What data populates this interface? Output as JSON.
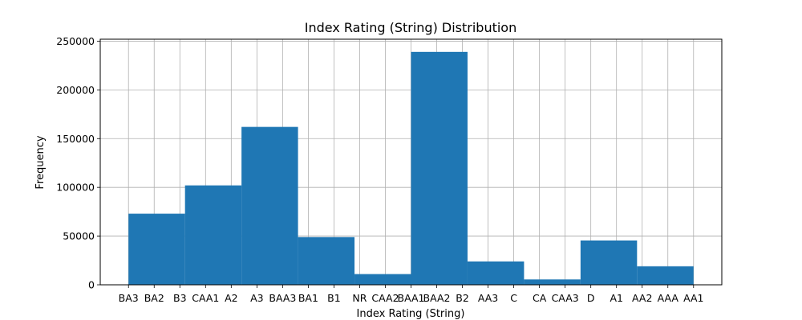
{
  "chart_data": {
    "type": "bar",
    "title": "Index Rating (String) Distribution",
    "xlabel": "Index Rating (String)",
    "ylabel": "Frequency",
    "categories": [
      "BA3",
      "BA2",
      "B3",
      "CAA1",
      "A2",
      "A3",
      "BAA3",
      "BA1",
      "B1",
      "NR",
      "CAA2",
      "BAA1",
      "BAA2",
      "B2",
      "AA3",
      "C",
      "CA",
      "CAA3",
      "D",
      "A1",
      "AA2",
      "AAA",
      "AA1"
    ],
    "bins": [
      {
        "start": 0,
        "end": 2.2,
        "value": 73000
      },
      {
        "start": 2.2,
        "end": 4.4,
        "value": 102000
      },
      {
        "start": 4.4,
        "end": 6.6,
        "value": 162000
      },
      {
        "start": 6.6,
        "end": 8.8,
        "value": 49000
      },
      {
        "start": 8.8,
        "end": 11,
        "value": 11000
      },
      {
        "start": 11,
        "end": 13.2,
        "value": 239000
      },
      {
        "start": 13.2,
        "end": 15.4,
        "value": 24000
      },
      {
        "start": 15.4,
        "end": 17.6,
        "value": 5500
      },
      {
        "start": 17.6,
        "end": 19.8,
        "value": 45500
      },
      {
        "start": 19.8,
        "end": 22,
        "value": 19000
      }
    ],
    "yticks": [
      0,
      50000,
      100000,
      150000,
      200000,
      250000
    ],
    "ylim": [
      0,
      252000
    ],
    "xlim": [
      -1.1,
      23.1
    ],
    "grid": true,
    "bar_color": "#1f77b4"
  }
}
